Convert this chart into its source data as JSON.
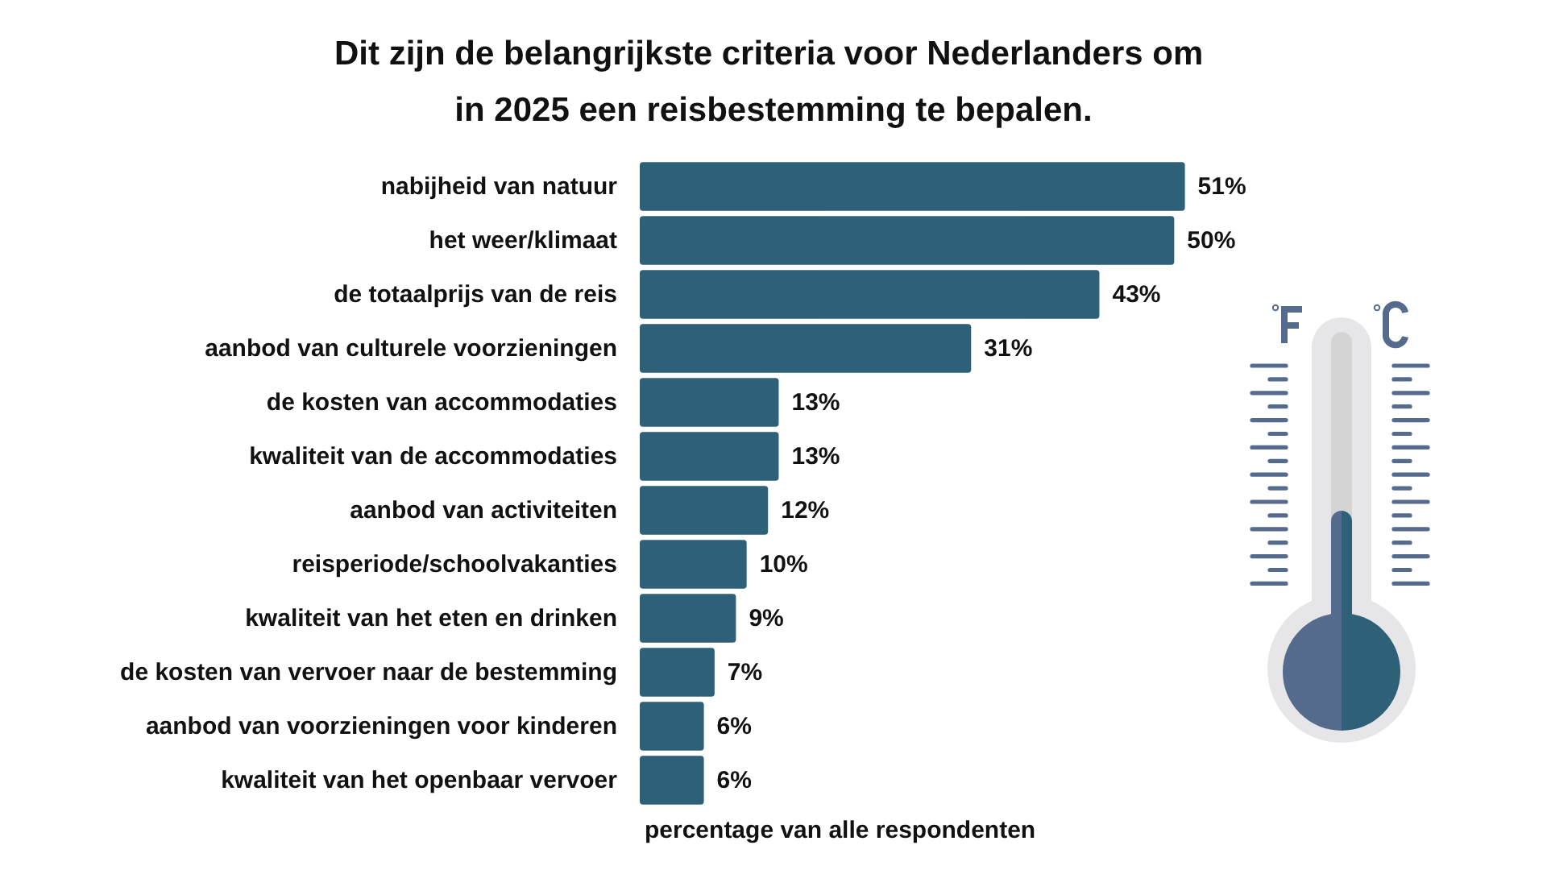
{
  "chart_data": {
    "type": "bar",
    "orientation": "horizontal",
    "title": "Dit zijn de belangrijkste criteria voor Nederlanders om in 2025 een reisbestemming te bepalen.",
    "xlabel": "percentage van alle respondenten",
    "categories": [
      "nabijheid van natuur",
      "het weer/klimaat",
      "de totaalprijs van de reis",
      "aanbod van culturele voorzieningen",
      "de kosten van accommodaties",
      "kwaliteit van de accommodaties",
      "aanbod van activiteiten",
      "reisperiode/schoolvakanties",
      "kwaliteit van het eten en drinken",
      "de kosten van vervoer naar de bestemming",
      "aanbod van voorzieningen voor kinderen",
      "kwaliteit van het openbaar vervoer"
    ],
    "values": [
      51,
      50,
      43,
      31,
      13,
      13,
      12,
      10,
      9,
      7,
      6,
      6
    ],
    "value_labels": [
      "51%",
      "50%",
      "43%",
      "31%",
      "13%",
      "13%",
      "12%",
      "10%",
      "9%",
      "7%",
      "6%",
      "6%"
    ],
    "color": "#2e6078"
  }
}
